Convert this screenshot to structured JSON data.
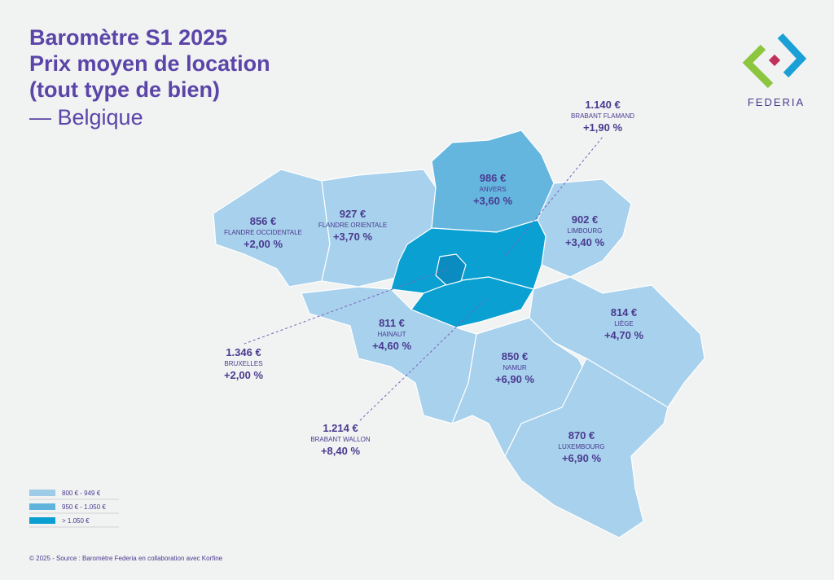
{
  "header": {
    "title": [
      "Baromètre S1 2025",
      "Prix moyen de location",
      "(tout type de bien)"
    ],
    "subtitle": "— Belgique"
  },
  "logo": {
    "text": "FEDERIA"
  },
  "regions": [
    {
      "price": "856 €",
      "name": "FLANDRE OCCIDENTALE",
      "change": "+2,00 %"
    },
    {
      "price": "927 €",
      "name": "FLANDRE ORIENTALE",
      "change": "+3,70 %"
    },
    {
      "price": "986 €",
      "name": "ANVERS",
      "change": "+3,60 %"
    },
    {
      "price": "902 €",
      "name": "LIMBOURG",
      "change": "+3,40 %"
    },
    {
      "price": "1.140 €",
      "name": "BRABANT FLAMAND",
      "change": "+1,90 %"
    },
    {
      "price": "1.346 €",
      "name": "BRUXELLES",
      "change": "+2,00 %"
    },
    {
      "price": "811 €",
      "name": "HAINAUT",
      "change": "+4,60 %"
    },
    {
      "price": "850 €",
      "name": "NAMUR",
      "change": "+6,90 %"
    },
    {
      "price": "814 €",
      "name": "LIÈGE",
      "change": "+4,70 %"
    },
    {
      "price": "1.214 €",
      "name": "BRABANT WALLON",
      "change": "+8,40 %"
    },
    {
      "price": "870 €",
      "name": "LUXEMBOURG",
      "change": "+6,90 %"
    }
  ],
  "legend": [
    {
      "label": "800 € - 949 €",
      "color": "#9dcbe8"
    },
    {
      "label": "950 € - 1.050 €",
      "color": "#5fb3dd"
    },
    {
      "label": "> 1.050 €",
      "color": "#0a9fd0"
    }
  ],
  "footer": "© 2025 - Source : Baromètre Federia en collaboration avec Korfine"
}
